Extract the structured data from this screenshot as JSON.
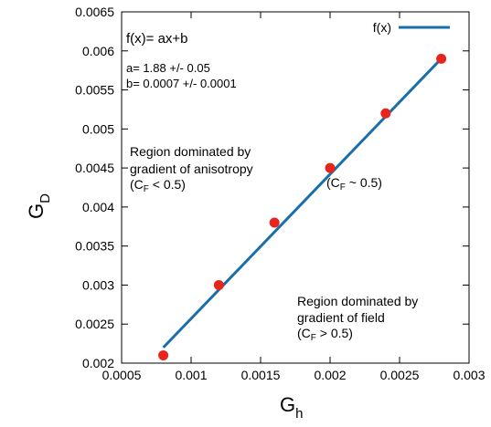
{
  "chart_data": {
    "type": "scatter",
    "xlabel": "G",
    "xlabel_sub": "h",
    "ylabel": "G",
    "ylabel_sub": "D",
    "xlim": [
      0.0005,
      0.003
    ],
    "ylim": [
      0.002,
      0.0065
    ],
    "xticks": [
      0.0005,
      0.001,
      0.0015,
      0.002,
      0.0025,
      0.003
    ],
    "xtick_labels": [
      "0.0005",
      "0.001",
      "0.0015",
      "0.002",
      "0.0025",
      "0.003"
    ],
    "yticks": [
      0.002,
      0.0025,
      0.003,
      0.0035,
      0.004,
      0.0045,
      0.005,
      0.0055,
      0.006,
      0.0065
    ],
    "ytick_labels": [
      "0.002",
      "0.0025",
      "0.003",
      "0.0035",
      "0.004",
      "0.0045",
      "0.005",
      "0.0055",
      "0.006",
      "0.0065"
    ],
    "grid": false,
    "legend_position": "top-right",
    "series": [
      {
        "type": "scatter",
        "color": "#e8251c",
        "x": [
          0.0008,
          0.0012,
          0.0016,
          0.002,
          0.0024,
          0.0028
        ],
        "y": [
          0.0021,
          0.003,
          0.0038,
          0.0045,
          0.0052,
          0.0059
        ]
      },
      {
        "name": "f(x)",
        "type": "line",
        "color": "#1a6fa8",
        "x": [
          0.0008,
          0.0028
        ],
        "y": [
          0.0022,
          0.0059
        ]
      }
    ],
    "annotations": {
      "formula": "f(x)= ax+b",
      "a_fit": "a= 1.88 +/- 0.05",
      "b_fit": "b= 0.0007 +/- 0.0001",
      "region_aniso_line1": "Region dominated by",
      "region_aniso_line2": "gradient of anisotropy",
      "region_aniso_cf_open": "(C",
      "region_aniso_cf_sub": "F",
      "region_aniso_cf_rest": " < 0.5)",
      "mid_cf_open": "(C",
      "mid_cf_sub": "F",
      "mid_cf_rest": " ~ 0.5)",
      "region_field_line1": "Region dominated by",
      "region_field_line2": "gradient of field",
      "region_field_cf_open": "(C",
      "region_field_cf_sub": "F",
      "region_field_cf_rest": " > 0.5)"
    }
  }
}
